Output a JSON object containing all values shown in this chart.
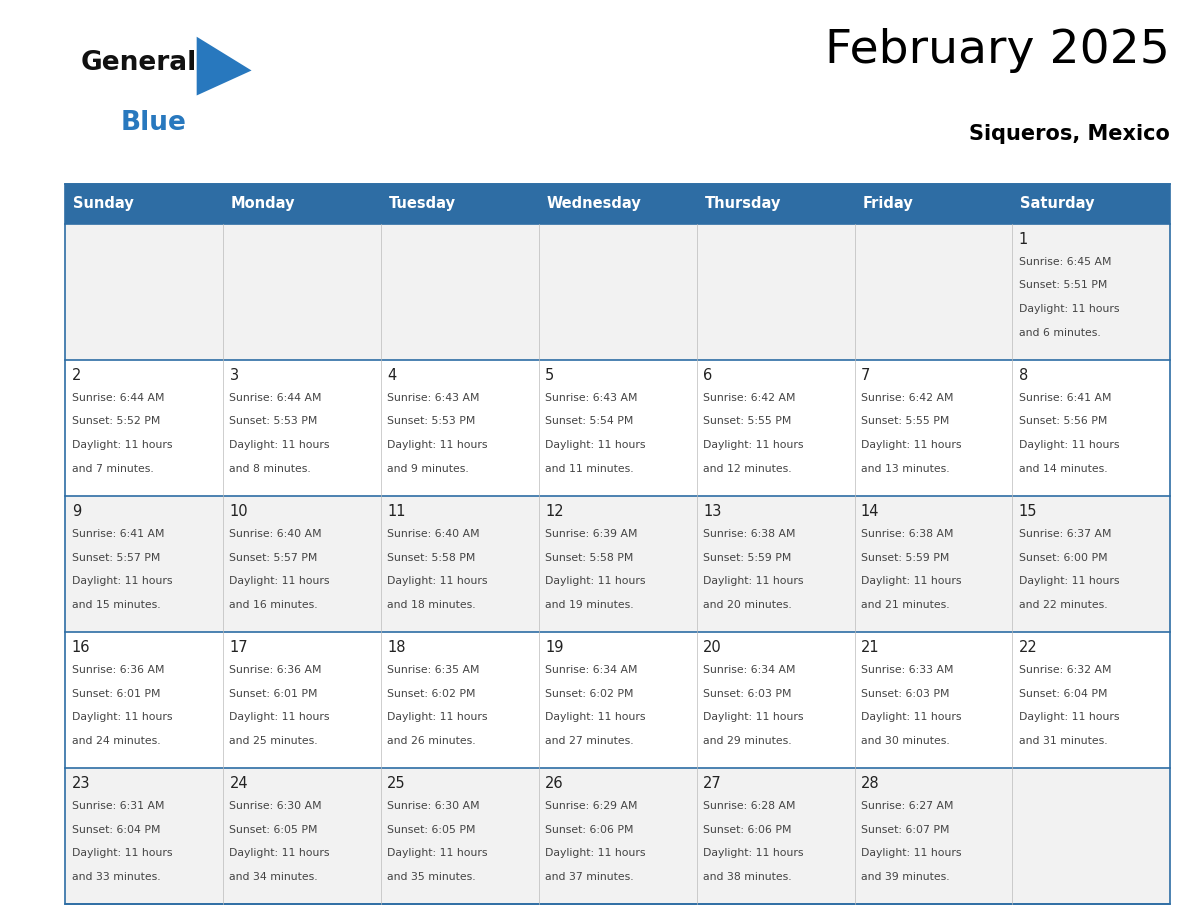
{
  "title": "February 2025",
  "subtitle": "Siqueros, Mexico",
  "header_bg_color": "#2E6DA4",
  "header_text_color": "#FFFFFF",
  "cell_bg_even": "#FFFFFF",
  "cell_bg_odd": "#F2F2F2",
  "day_headers": [
    "Sunday",
    "Monday",
    "Tuesday",
    "Wednesday",
    "Thursday",
    "Friday",
    "Saturday"
  ],
  "calendar_data": [
    [
      null,
      null,
      null,
      null,
      null,
      null,
      {
        "day": 1,
        "sunrise": "6:45 AM",
        "sunset": "5:51 PM",
        "daylight_hrs": 11,
        "daylight_min": 6
      }
    ],
    [
      {
        "day": 2,
        "sunrise": "6:44 AM",
        "sunset": "5:52 PM",
        "daylight_hrs": 11,
        "daylight_min": 7
      },
      {
        "day": 3,
        "sunrise": "6:44 AM",
        "sunset": "5:53 PM",
        "daylight_hrs": 11,
        "daylight_min": 8
      },
      {
        "day": 4,
        "sunrise": "6:43 AM",
        "sunset": "5:53 PM",
        "daylight_hrs": 11,
        "daylight_min": 9
      },
      {
        "day": 5,
        "sunrise": "6:43 AM",
        "sunset": "5:54 PM",
        "daylight_hrs": 11,
        "daylight_min": 11
      },
      {
        "day": 6,
        "sunrise": "6:42 AM",
        "sunset": "5:55 PM",
        "daylight_hrs": 11,
        "daylight_min": 12
      },
      {
        "day": 7,
        "sunrise": "6:42 AM",
        "sunset": "5:55 PM",
        "daylight_hrs": 11,
        "daylight_min": 13
      },
      {
        "day": 8,
        "sunrise": "6:41 AM",
        "sunset": "5:56 PM",
        "daylight_hrs": 11,
        "daylight_min": 14
      }
    ],
    [
      {
        "day": 9,
        "sunrise": "6:41 AM",
        "sunset": "5:57 PM",
        "daylight_hrs": 11,
        "daylight_min": 15
      },
      {
        "day": 10,
        "sunrise": "6:40 AM",
        "sunset": "5:57 PM",
        "daylight_hrs": 11,
        "daylight_min": 16
      },
      {
        "day": 11,
        "sunrise": "6:40 AM",
        "sunset": "5:58 PM",
        "daylight_hrs": 11,
        "daylight_min": 18
      },
      {
        "day": 12,
        "sunrise": "6:39 AM",
        "sunset": "5:58 PM",
        "daylight_hrs": 11,
        "daylight_min": 19
      },
      {
        "day": 13,
        "sunrise": "6:38 AM",
        "sunset": "5:59 PM",
        "daylight_hrs": 11,
        "daylight_min": 20
      },
      {
        "day": 14,
        "sunrise": "6:38 AM",
        "sunset": "5:59 PM",
        "daylight_hrs": 11,
        "daylight_min": 21
      },
      {
        "day": 15,
        "sunrise": "6:37 AM",
        "sunset": "6:00 PM",
        "daylight_hrs": 11,
        "daylight_min": 22
      }
    ],
    [
      {
        "day": 16,
        "sunrise": "6:36 AM",
        "sunset": "6:01 PM",
        "daylight_hrs": 11,
        "daylight_min": 24
      },
      {
        "day": 17,
        "sunrise": "6:36 AM",
        "sunset": "6:01 PM",
        "daylight_hrs": 11,
        "daylight_min": 25
      },
      {
        "day": 18,
        "sunrise": "6:35 AM",
        "sunset": "6:02 PM",
        "daylight_hrs": 11,
        "daylight_min": 26
      },
      {
        "day": 19,
        "sunrise": "6:34 AM",
        "sunset": "6:02 PM",
        "daylight_hrs": 11,
        "daylight_min": 27
      },
      {
        "day": 20,
        "sunrise": "6:34 AM",
        "sunset": "6:03 PM",
        "daylight_hrs": 11,
        "daylight_min": 29
      },
      {
        "day": 21,
        "sunrise": "6:33 AM",
        "sunset": "6:03 PM",
        "daylight_hrs": 11,
        "daylight_min": 30
      },
      {
        "day": 22,
        "sunrise": "6:32 AM",
        "sunset": "6:04 PM",
        "daylight_hrs": 11,
        "daylight_min": 31
      }
    ],
    [
      {
        "day": 23,
        "sunrise": "6:31 AM",
        "sunset": "6:04 PM",
        "daylight_hrs": 11,
        "daylight_min": 33
      },
      {
        "day": 24,
        "sunrise": "6:30 AM",
        "sunset": "6:05 PM",
        "daylight_hrs": 11,
        "daylight_min": 34
      },
      {
        "day": 25,
        "sunrise": "6:30 AM",
        "sunset": "6:05 PM",
        "daylight_hrs": 11,
        "daylight_min": 35
      },
      {
        "day": 26,
        "sunrise": "6:29 AM",
        "sunset": "6:06 PM",
        "daylight_hrs": 11,
        "daylight_min": 37
      },
      {
        "day": 27,
        "sunrise": "6:28 AM",
        "sunset": "6:06 PM",
        "daylight_hrs": 11,
        "daylight_min": 38
      },
      {
        "day": 28,
        "sunrise": "6:27 AM",
        "sunset": "6:07 PM",
        "daylight_hrs": 11,
        "daylight_min": 39
      },
      null
    ]
  ],
  "logo_general_color": "#111111",
  "logo_blue_color": "#2878BE",
  "logo_triangle_color": "#2878BE",
  "grid_line_color": "#2E6DA4",
  "separator_line_color": "#AAAAAA",
  "text_color": "#444444",
  "day_num_color": "#222222",
  "figsize": [
    11.88,
    9.18
  ],
  "dpi": 100
}
